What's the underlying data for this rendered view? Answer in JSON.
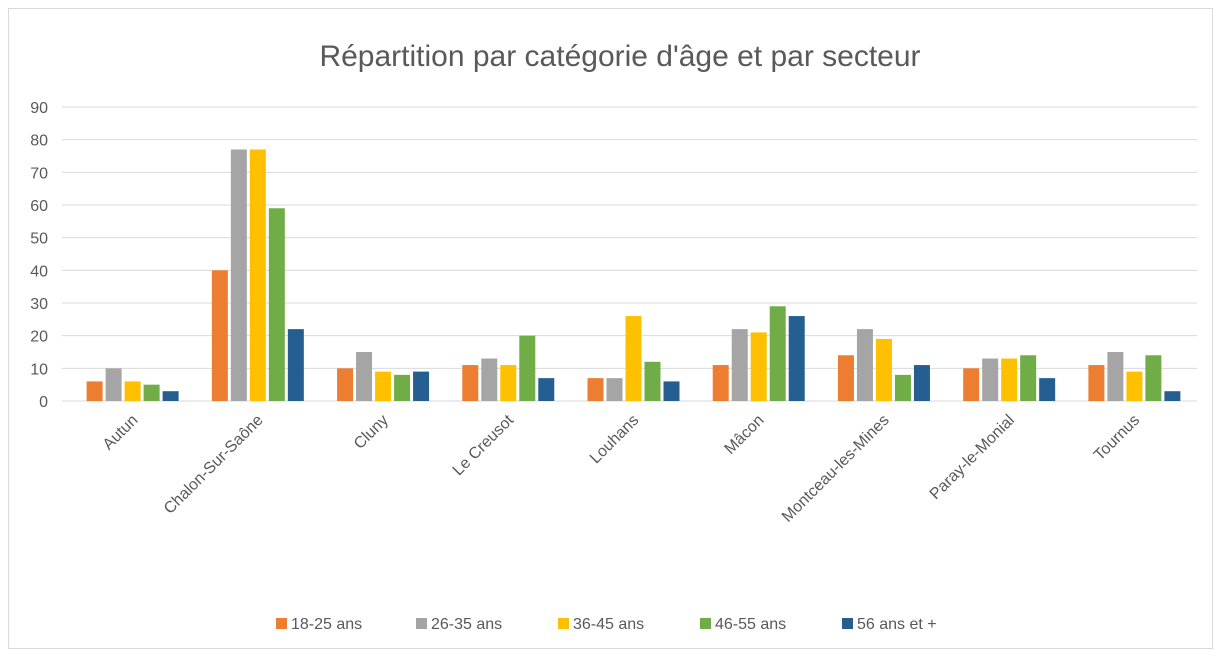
{
  "chart_data": {
    "type": "bar",
    "title": "Répartition par catégorie d'âge et par secteur",
    "categories": [
      "Autun",
      "Chalon-Sur-Saône",
      "Cluny",
      "Le Creusot",
      "Louhans",
      "Mâcon",
      "Montceau-les-Mines",
      "Paray-le-Monial",
      "Tournus"
    ],
    "series": [
      {
        "name": "18-25 ans",
        "color": "#ed7d31",
        "values": [
          6,
          40,
          10,
          11,
          7,
          11,
          14,
          10,
          11
        ]
      },
      {
        "name": "26-35 ans",
        "color": "#a5a5a5",
        "values": [
          10,
          77,
          15,
          13,
          7,
          22,
          22,
          13,
          15
        ]
      },
      {
        "name": "36-45 ans",
        "color": "#ffc000",
        "values": [
          6,
          77,
          9,
          11,
          26,
          21,
          19,
          13,
          9
        ]
      },
      {
        "name": "46-55 ans",
        "color": "#70ad47",
        "values": [
          5,
          59,
          8,
          20,
          12,
          29,
          8,
          14,
          14
        ]
      },
      {
        "name": "56 ans et +",
        "color": "#255e91",
        "values": [
          3,
          22,
          9,
          7,
          6,
          26,
          11,
          7,
          3
        ]
      }
    ],
    "ylim": [
      0,
      90
    ],
    "yticks": [
      0,
      10,
      20,
      30,
      40,
      50,
      60,
      70,
      80,
      90
    ],
    "grid": true,
    "legend": "bottom"
  }
}
